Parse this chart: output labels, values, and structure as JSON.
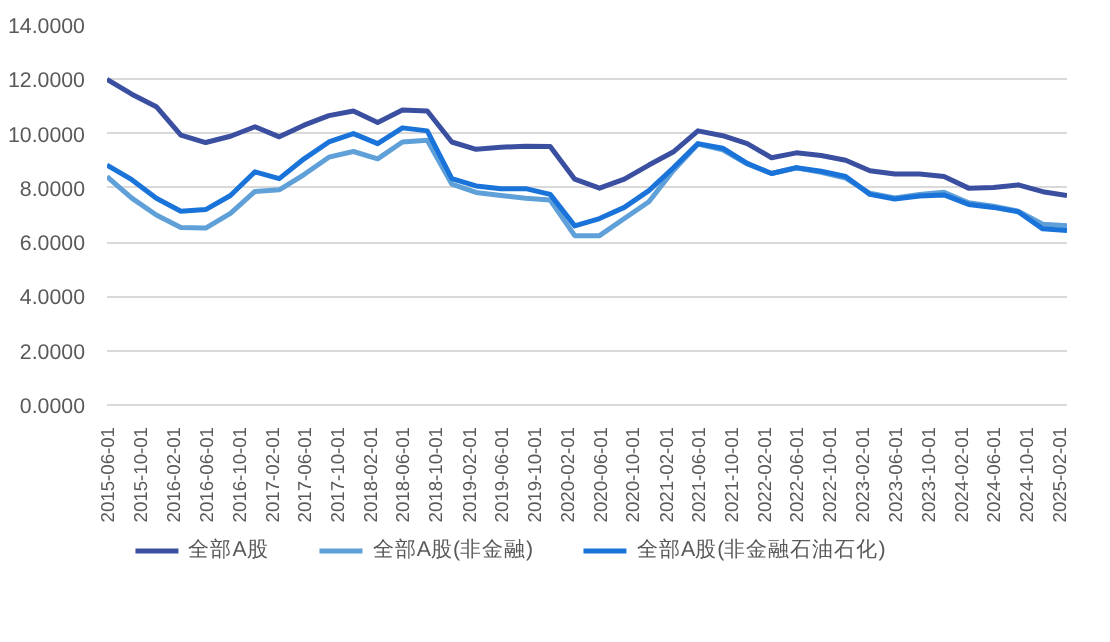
{
  "chart_data": {
    "type": "line",
    "x": [
      "2015-06-01",
      "2015-09-01",
      "2015-12-01",
      "2016-03-01",
      "2016-06-01",
      "2016-09-01",
      "2016-12-01",
      "2017-03-01",
      "2017-06-01",
      "2017-09-01",
      "2017-12-01",
      "2018-03-01",
      "2018-06-01",
      "2018-09-01",
      "2018-12-01",
      "2019-03-01",
      "2019-06-01",
      "2019-09-01",
      "2019-12-01",
      "2020-03-01",
      "2020-06-01",
      "2020-09-01",
      "2020-12-01",
      "2021-03-01",
      "2021-06-01",
      "2021-09-01",
      "2021-12-01",
      "2022-03-01",
      "2022-06-01",
      "2022-09-01",
      "2022-12-01",
      "2023-03-01",
      "2023-06-01",
      "2023-09-01",
      "2023-12-01",
      "2024-03-01",
      "2024-06-01",
      "2024-09-01",
      "2024-12-01",
      "2025-03-01"
    ],
    "series": [
      {
        "name": "全部A股",
        "color": "#3b4fa0",
        "values": [
          12.0,
          11.45,
          10.99,
          9.94,
          9.67,
          9.9,
          10.25,
          9.88,
          10.31,
          10.66,
          10.83,
          10.41,
          10.87,
          10.83,
          9.69,
          9.42,
          9.5,
          9.53,
          9.52,
          8.32,
          7.99,
          8.32,
          8.84,
          9.32,
          10.1,
          9.92,
          9.63,
          9.11,
          9.29,
          9.19,
          9.02,
          8.63,
          8.51,
          8.51,
          8.42,
          7.99,
          8.01,
          8.11,
          7.86,
          7.72
        ]
      },
      {
        "name": "全部A股(非金融)",
        "color": "#5fa0d8",
        "values": [
          8.41,
          7.62,
          7.0,
          6.54,
          6.52,
          7.06,
          7.87,
          7.93,
          8.49,
          9.13,
          9.34,
          9.07,
          9.69,
          9.75,
          8.14,
          7.83,
          7.72,
          7.62,
          7.55,
          6.24,
          6.24,
          6.87,
          7.49,
          8.63,
          9.61,
          9.4,
          8.88,
          8.53,
          8.74,
          8.57,
          8.36,
          7.8,
          7.63,
          7.76,
          7.84,
          7.45,
          7.32,
          7.14,
          6.66,
          6.6
        ]
      },
      {
        "name": "全部A股(非金融石油石化)",
        "color": "#1a73d9",
        "values": [
          8.84,
          8.3,
          7.62,
          7.14,
          7.2,
          7.72,
          8.59,
          8.34,
          9.07,
          9.69,
          10.0,
          9.63,
          10.21,
          10.1,
          8.34,
          8.07,
          7.97,
          7.97,
          7.76,
          6.6,
          6.87,
          7.28,
          7.9,
          8.73,
          9.63,
          9.46,
          8.9,
          8.53,
          8.74,
          8.61,
          8.42,
          7.76,
          7.59,
          7.7,
          7.74,
          7.39,
          7.28,
          7.12,
          6.49,
          6.43
        ]
      }
    ],
    "xlim": [
      "2015-06-01",
      "2025-03-01"
    ],
    "xticks": [
      "2015-06-01",
      "2015-10-01",
      "2016-02-01",
      "2016-06-01",
      "2016-10-01",
      "2017-02-01",
      "2017-06-01",
      "2017-10-01",
      "2018-02-01",
      "2018-06-01",
      "2018-10-01",
      "2019-02-01",
      "2019-06-01",
      "2019-10-01",
      "2020-02-01",
      "2020-06-01",
      "2020-10-01",
      "2021-02-01",
      "2021-06-01",
      "2021-10-01",
      "2022-02-01",
      "2022-06-01",
      "2022-10-01",
      "2023-02-01",
      "2023-06-01",
      "2023-10-01",
      "2024-02-01",
      "2024-06-01",
      "2024-10-01",
      "2025-02-01"
    ],
    "ylim": [
      0,
      14
    ],
    "yticks": [
      {
        "value": 0,
        "label": "0.0000"
      },
      {
        "value": 2,
        "label": "2.0000"
      },
      {
        "value": 4,
        "label": "4.0000"
      },
      {
        "value": 6,
        "label": "6.0000"
      },
      {
        "value": 8,
        "label": "8.0000"
      },
      {
        "value": 10,
        "label": "10.0000"
      },
      {
        "value": 12,
        "label": "12.0000"
      },
      {
        "value": 14,
        "label": "14.0000"
      }
    ],
    "grid": "y",
    "legend": "bottom",
    "marker": "none",
    "line_style": "solid"
  }
}
